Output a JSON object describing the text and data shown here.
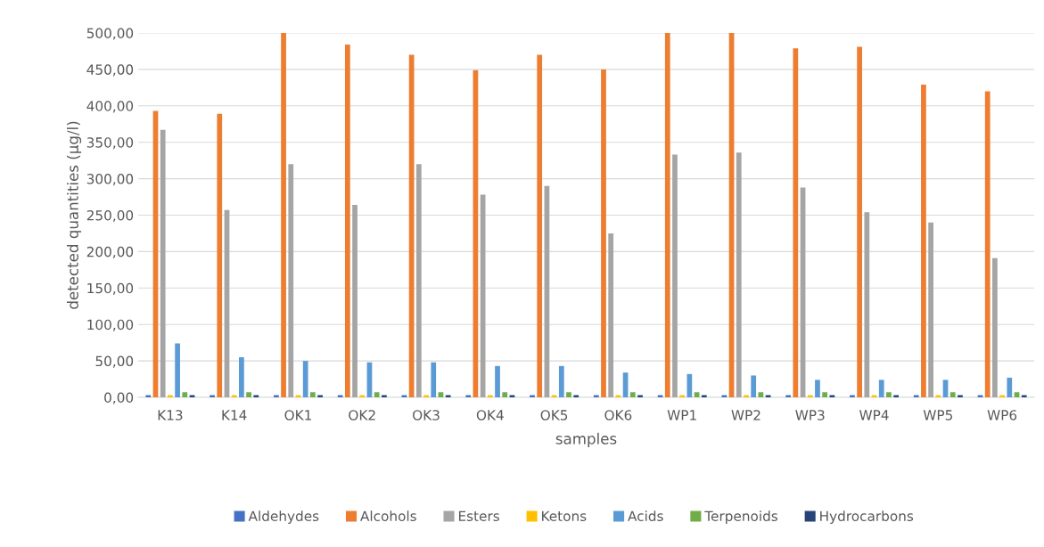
{
  "chart_data": {
    "type": "bar",
    "xlabel": "samples",
    "ylabel": "detected quantities (µg/l)",
    "categories": [
      "K13",
      "K14",
      "OK1",
      "OK2",
      "OK3",
      "OK4",
      "OK5",
      "OK6",
      "WP1",
      "WP2",
      "WP3",
      "WP4",
      "WP5",
      "WP6"
    ],
    "series": [
      {
        "name": "Aldehydes",
        "color": "#4472c4",
        "values": [
          3,
          3,
          3,
          3,
          3,
          3,
          3,
          3,
          3,
          3,
          3,
          3,
          3,
          3
        ]
      },
      {
        "name": "Alcohols",
        "color": "#ed7d31",
        "values": [
          393,
          389,
          500,
          484,
          470,
          449,
          470,
          450,
          500,
          500,
          479,
          481,
          429,
          420
        ]
      },
      {
        "name": "Esters",
        "color": "#a5a5a5",
        "values": [
          367,
          257,
          320,
          264,
          320,
          278,
          290,
          225,
          333,
          336,
          288,
          254,
          240,
          191
        ]
      },
      {
        "name": "Ketons",
        "color": "#ffc000",
        "values": [
          3,
          3,
          3,
          3,
          3,
          3,
          3,
          3,
          3,
          3,
          3,
          3,
          3,
          3
        ]
      },
      {
        "name": "Acids",
        "color": "#5b9bd5",
        "values": [
          74,
          55,
          50,
          48,
          48,
          43,
          43,
          34,
          32,
          30,
          24,
          24,
          24,
          27
        ]
      },
      {
        "name": "Terpenoids",
        "color": "#70ad47",
        "values": [
          7,
          7,
          7,
          7,
          7,
          7,
          7,
          7,
          7,
          7,
          7,
          7,
          7,
          7
        ]
      },
      {
        "name": "Hydrocarbons",
        "color": "#264478",
        "values": [
          3,
          3,
          3,
          3,
          3,
          3,
          3,
          3,
          3,
          3,
          3,
          3,
          3,
          3
        ]
      }
    ],
    "ylim": [
      0,
      500
    ],
    "yticks": [
      {
        "value": 0,
        "label": "0,00"
      },
      {
        "value": 50,
        "label": "50,00"
      },
      {
        "value": 100,
        "label": "100,00"
      },
      {
        "value": 150,
        "label": "150,00"
      },
      {
        "value": 200,
        "label": "200,00"
      },
      {
        "value": 250,
        "label": "250,00"
      },
      {
        "value": 300,
        "label": "300,00"
      },
      {
        "value": 350,
        "label": "350,00"
      },
      {
        "value": 400,
        "label": "400,00"
      },
      {
        "value": 450,
        "label": "450,00"
      },
      {
        "value": 500,
        "label": "500,00"
      }
    ],
    "grid": "y",
    "legend": "bottom"
  }
}
